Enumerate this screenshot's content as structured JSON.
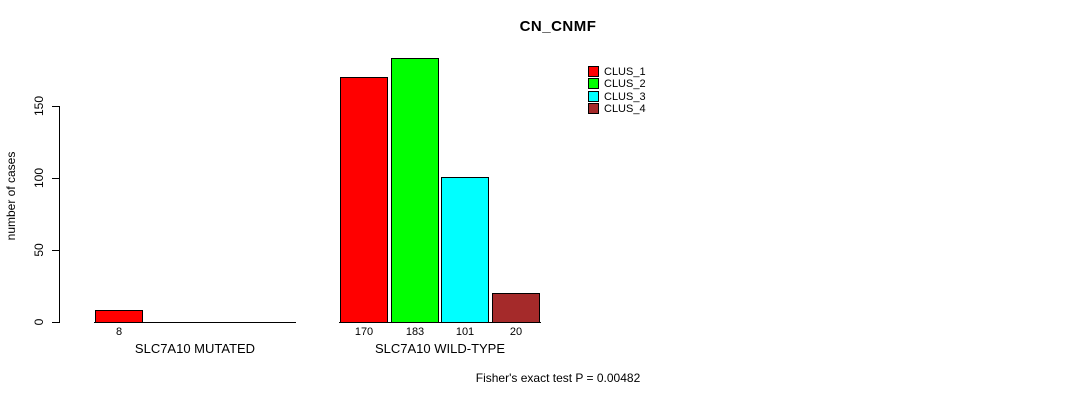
{
  "chart_data": {
    "type": "bar",
    "title": "CN_CNMF",
    "ylabel": "number of cases",
    "xlabel": "",
    "yticks": [
      0,
      50,
      100,
      150
    ],
    "ylim": [
      0,
      190
    ],
    "grid": false,
    "legend_position": "top-right",
    "footer": "Fisher's exact test P = 0.00482",
    "series": [
      {
        "name": "CLUS_1",
        "color": "#ff0000"
      },
      {
        "name": "CLUS_2",
        "color": "#00ff00"
      },
      {
        "name": "CLUS_3",
        "color": "#00ffff"
      },
      {
        "name": "CLUS_4",
        "color": "#a52a2a"
      }
    ],
    "groups": [
      {
        "label": "SLC7A10 MUTATED",
        "values": [
          8,
          0,
          0,
          0
        ],
        "value_labels": [
          "8",
          "",
          "",
          ""
        ]
      },
      {
        "label": "SLC7A10 WILD-TYPE",
        "values": [
          170,
          183,
          101,
          20
        ],
        "value_labels": [
          "170",
          "183",
          "101",
          "20"
        ]
      }
    ]
  }
}
